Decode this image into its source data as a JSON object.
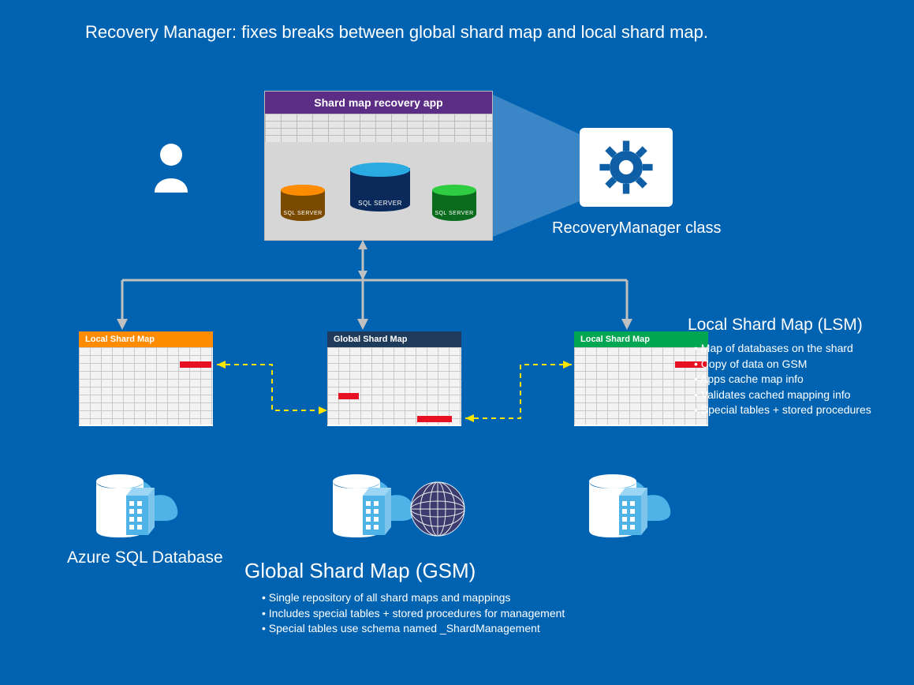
{
  "title": "Recovery Manager: fixes breaks between global shard map and local shard map.",
  "app": {
    "header": "Shard map recovery app",
    "cylinders": {
      "left": {
        "label": "SQL SERVER",
        "body": "#7a4a00",
        "top": "#ff8c00"
      },
      "center": {
        "label": "SQL SERVER",
        "body": "#0a2a5c",
        "top": "#29abe2"
      },
      "right": {
        "label": "SQL SERVER",
        "body": "#0a6b1f",
        "top": "#2ecc40"
      }
    }
  },
  "gear_label": "RecoveryManager class",
  "shards": {
    "left": {
      "title": "Local Shard Map",
      "header_bg": "#ff8c00"
    },
    "center": {
      "title": "Global Shard Map",
      "header_bg": "#1f3b5c"
    },
    "right": {
      "title": "Local Shard Map",
      "header_bg": "#00a651"
    }
  },
  "azure_label": "Azure SQL Database",
  "gsm_title": "Global Shard Map (GSM)",
  "gsm_bullets": [
    "Single repository of all shard maps and mappings",
    "Includes special tables + stored procedures for management",
    "Special tables use schema named _ShardManagement"
  ],
  "lsm_title": "Local Shard Map (LSM)",
  "lsm_bullets": [
    "Map of databases on the shard",
    "Copy of data on GSM",
    "Apps cache map info",
    "Validates cached mapping info",
    "Special tables + stored procedures"
  ],
  "colors": {
    "bg": "#0063b1",
    "app_header": "#5b2d84",
    "gear": "#0f5fa6",
    "cloud": "#4fb3e8",
    "db_white": "#ffffff",
    "globe": "#3b3b6d",
    "red": "#e81123",
    "arrow": "#c0c0c0",
    "dash": "#ffe600"
  }
}
